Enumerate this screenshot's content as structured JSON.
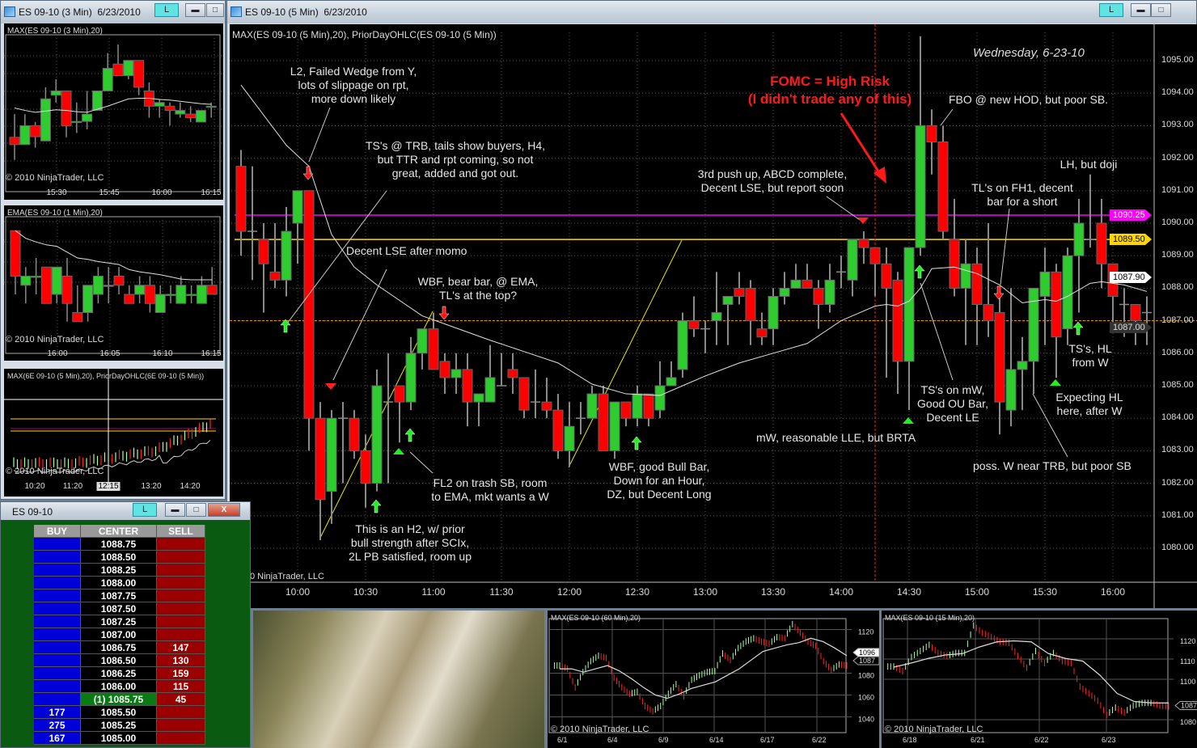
{
  "windows": {
    "three_min": {
      "title": "ES 09-10 (3 Min)  6/23/2010",
      "l_button": "L"
    },
    "main": {
      "title": "ES 09-10 (5 Min)  6/23/2010",
      "l_button": "L"
    },
    "dom": {
      "title": "ES 09-10",
      "l_button": "L",
      "minimize": "▬",
      "maximize": "□",
      "close": "X"
    }
  },
  "copyright": "© 2010 NinjaTrader, LLC",
  "copyright_partial": "0 NinjaTrader, LLC",
  "colors": {
    "up": "#2ecc2e",
    "down": "#ff0000",
    "ema": "#e0e0e0",
    "prior_high": "#ff00ff",
    "prior_open": "#ffd700",
    "last_price": "#ff9900",
    "fomc": "#ff1a1a"
  },
  "main_chart": {
    "indicator_label": "MAX(ES 09-10 (5 Min),20), PriorDayOHLC(ES 09-10 (5 Min))",
    "date_label": "Wednesday, 6-23-10",
    "price_axis": [
      "1095.00",
      "1094.00",
      "1093.00",
      "1092.00",
      "1091.00",
      "1090.00",
      "1089.00",
      "1088.00",
      "1087.00",
      "1086.00",
      "1085.00",
      "1084.00",
      "1083.00",
      "1082.00",
      "1081.00",
      "1080.00"
    ],
    "time_axis": [
      "10:00",
      "10:30",
      "11:00",
      "11:30",
      "12:00",
      "12:30",
      "13:00",
      "13:30",
      "14:00",
      "14:30",
      "15:00",
      "15:30",
      "16:00"
    ],
    "price_tags": {
      "prior_high": "1090.25",
      "prior_open": "1089.50",
      "ema": "1087.90",
      "last": "1087.00"
    },
    "levels": {
      "prior_high": 1090.25,
      "prior_open": 1089.5,
      "last": 1087.0
    },
    "first_bar_time": "9:35",
    "bar_minutes": 5,
    "candles_ohlc": [
      [
        1091.75,
        1092.25,
        1089.0,
        1089.75
      ],
      [
        1089.75,
        1091.75,
        1088.25,
        1089.75
      ],
      [
        1089.5,
        1090.0,
        1087.25,
        1088.75
      ],
      [
        1088.5,
        1090.0,
        1088.0,
        1088.25
      ],
      [
        1088.25,
        1090.5,
        1087.75,
        1089.75
      ],
      [
        1090.0,
        1091.0,
        1088.75,
        1091.0
      ],
      [
        1091.0,
        1091.0,
        1083.0,
        1084.0
      ],
      [
        1084.0,
        1084.5,
        1080.25,
        1081.5
      ],
      [
        1081.75,
        1084.25,
        1080.75,
        1084.0
      ],
      [
        1084.0,
        1084.5,
        1082.0,
        1084.0
      ],
      [
        1084.0,
        1084.25,
        1082.75,
        1083.0
      ],
      [
        1083.0,
        1083.5,
        1081.25,
        1082.0
      ],
      [
        1082.0,
        1085.5,
        1081.75,
        1085.0
      ],
      [
        1084.5,
        1086.0,
        1082.0,
        1084.5
      ],
      [
        1085.0,
        1085.0,
        1083.25,
        1084.5
      ],
      [
        1084.5,
        1086.5,
        1084.25,
        1086.0
      ],
      [
        1086.0,
        1086.75,
        1085.5,
        1086.75
      ],
      [
        1086.75,
        1087.25,
        1085.5,
        1085.5
      ],
      [
        1085.75,
        1086.0,
        1084.75,
        1085.25
      ],
      [
        1085.25,
        1086.0,
        1084.75,
        1085.5
      ],
      [
        1085.5,
        1086.0,
        1083.75,
        1084.5
      ],
      [
        1084.5,
        1084.75,
        1083.75,
        1084.75
      ],
      [
        1084.5,
        1086.25,
        1084.5,
        1085.25
      ],
      [
        1085.0,
        1086.0,
        1085.0,
        1085.0
      ],
      [
        1085.5,
        1086.0,
        1084.75,
        1085.25
      ],
      [
        1085.25,
        1085.25,
        1084.0,
        1084.25
      ],
      [
        1084.5,
        1085.5,
        1084.0,
        1084.5
      ],
      [
        1084.5,
        1085.25,
        1084.0,
        1084.25
      ],
      [
        1084.25,
        1084.75,
        1082.75,
        1083.0
      ],
      [
        1083.0,
        1084.5,
        1082.5,
        1083.75
      ],
      [
        1084.0,
        1084.5,
        1083.5,
        1084.0
      ],
      [
        1084.0,
        1085.0,
        1084.0,
        1084.75
      ],
      [
        1084.75,
        1085.0,
        1083.0,
        1083.0
      ],
      [
        1083.0,
        1084.5,
        1082.75,
        1084.5
      ],
      [
        1084.5,
        1084.5,
        1083.75,
        1084.0
      ],
      [
        1084.0,
        1085.0,
        1083.75,
        1084.75
      ],
      [
        1084.75,
        1084.75,
        1083.75,
        1084.0
      ],
      [
        1084.25,
        1085.75,
        1084.0,
        1085.0
      ],
      [
        1085.0,
        1085.75,
        1085.0,
        1085.25
      ],
      [
        1085.5,
        1087.25,
        1085.25,
        1087.0
      ],
      [
        1087.0,
        1087.75,
        1086.5,
        1086.75
      ],
      [
        1086.75,
        1087.0,
        1086.0,
        1086.75
      ],
      [
        1087.0,
        1088.5,
        1086.25,
        1087.25
      ],
      [
        1087.5,
        1087.75,
        1086.25,
        1087.75
      ],
      [
        1088.0,
        1088.5,
        1087.5,
        1087.75
      ],
      [
        1088.0,
        1088.25,
        1086.25,
        1087.0
      ],
      [
        1086.75,
        1087.25,
        1086.25,
        1086.5
      ],
      [
        1086.75,
        1088.0,
        1086.25,
        1087.75
      ],
      [
        1087.75,
        1088.5,
        1087.5,
        1088.0
      ],
      [
        1088.0,
        1088.75,
        1088.0,
        1088.25
      ],
      [
        1088.25,
        1088.75,
        1088.0,
        1088.0
      ],
      [
        1088.0,
        1088.25,
        1086.75,
        1087.5
      ],
      [
        1087.5,
        1088.75,
        1087.25,
        1088.25
      ],
      [
        1088.5,
        1089.0,
        1088.0,
        1088.5
      ],
      [
        1088.25,
        1089.5,
        1087.75,
        1089.5
      ],
      [
        1089.5,
        1089.75,
        1088.75,
        1089.25
      ],
      [
        1089.25,
        1089.25,
        1087.75,
        1088.75
      ],
      [
        1088.75,
        1089.25,
        1085.25,
        1088.0
      ],
      [
        1088.25,
        1088.5,
        1084.75,
        1085.75
      ],
      [
        1085.75,
        1089.25,
        1084.25,
        1089.25
      ],
      [
        1089.25,
        1095.75,
        1089.0,
        1093.0
      ],
      [
        1093.0,
        1093.5,
        1091.5,
        1092.5
      ],
      [
        1092.5,
        1093.0,
        1089.5,
        1089.75
      ],
      [
        1089.5,
        1090.75,
        1087.75,
        1088.0
      ],
      [
        1088.0,
        1089.5,
        1086.25,
        1088.75
      ],
      [
        1088.75,
        1089.25,
        1086.25,
        1087.5
      ],
      [
        1087.5,
        1090.0,
        1086.5,
        1087.0
      ],
      [
        1087.25,
        1088.0,
        1083.5,
        1084.5
      ],
      [
        1084.25,
        1088.0,
        1083.75,
        1085.5
      ],
      [
        1085.5,
        1086.5,
        1084.25,
        1085.75
      ],
      [
        1085.75,
        1088.0,
        1084.75,
        1088.0
      ],
      [
        1087.75,
        1089.25,
        1086.25,
        1088.5
      ],
      [
        1088.5,
        1088.75,
        1085.25,
        1086.5
      ],
      [
        1086.75,
        1089.25,
        1086.25,
        1089.0
      ],
      [
        1089.0,
        1090.75,
        1087.25,
        1090.0
      ],
      [
        1089.5,
        1091.5,
        1089.25,
        1089.5
      ],
      [
        1090.0,
        1090.75,
        1088.0,
        1088.75
      ],
      [
        1088.75,
        1088.75,
        1086.75,
        1087.75
      ],
      [
        1087.5,
        1088.0,
        1086.5,
        1087.5
      ],
      [
        1087.5,
        1087.5,
        1086.25,
        1087.0
      ],
      [
        1087.25,
        1087.75,
        1086.25,
        1087.25
      ]
    ],
    "ema": [
      [
        0,
        1094.25
      ],
      [
        4,
        1092.4
      ],
      [
        6,
        1091.75
      ],
      [
        8,
        1089.65
      ],
      [
        10,
        1088.65
      ],
      [
        12,
        1088.1
      ],
      [
        16,
        1087.15
      ],
      [
        18,
        1086.9
      ],
      [
        22,
        1086.4
      ],
      [
        25,
        1086.05
      ],
      [
        28,
        1085.7
      ],
      [
        31,
        1085.05
      ],
      [
        34,
        1084.75
      ],
      [
        37,
        1084.7
      ],
      [
        39,
        1085.0
      ],
      [
        41,
        1085.3
      ],
      [
        44,
        1085.7
      ],
      [
        47,
        1086.0
      ],
      [
        50,
        1086.3
      ],
      [
        53,
        1087.0
      ],
      [
        56,
        1087.45
      ],
      [
        57,
        1087.5
      ],
      [
        58,
        1087.45
      ],
      [
        59,
        1087.6
      ],
      [
        60,
        1088.0
      ],
      [
        61,
        1088.6
      ],
      [
        63,
        1088.65
      ],
      [
        65,
        1088.45
      ],
      [
        67,
        1088.1
      ],
      [
        69,
        1087.55
      ],
      [
        71,
        1087.65
      ],
      [
        72,
        1087.6
      ],
      [
        73,
        1087.75
      ],
      [
        75,
        1088.15
      ],
      [
        76,
        1088.2
      ],
      [
        78,
        1088.1
      ],
      [
        80,
        1087.9
      ]
    ],
    "annotations": {
      "l2_wedge": [
        "L2, Failed Wedge from Y,",
        "lots of slippage on rpt,",
        "more down likely"
      ],
      "ts_trb": [
        "TS's @ TRB, tails show buyers, H4,",
        "but TTR and rpt coming, so not",
        "great, added and got out."
      ],
      "decent_lse": [
        "Decent LSE after momo"
      ],
      "wbf_bear": [
        "WBF, bear bar, @ EMA,",
        "TL's at the top?"
      ],
      "fl2": [
        "FL2 on trash SB, room",
        "to EMA, mkt wants a W"
      ],
      "h2": [
        "This is an H2, w/ prior",
        "bull strength after SCIx,",
        "2L PB satisfied, room up"
      ],
      "wbf_bull": [
        "WBF, good Bull Bar,",
        "Down for an Hour,",
        "DZ, but Decent Long"
      ],
      "third_push": [
        "3rd push up, ABCD complete,",
        "Decent LSE, but report soon"
      ],
      "fomc": [
        "FOMC = High Risk",
        "(I didn't trade any of this)"
      ],
      "fbo": [
        "FBO @ new HOD, but poor SB."
      ],
      "lh_doji": [
        "LH, but doji"
      ],
      "tls_fh1": [
        "TL's on FH1, decent",
        "bar for a short"
      ],
      "ts_mw": [
        "TS's on mW,",
        "Good OU Bar,",
        "Decent LE"
      ],
      "mw_lle": [
        "mW, reasonable LLE, but BRTA"
      ],
      "ts_hl": [
        "TS's, HL",
        "from W"
      ],
      "expect_hl": [
        "Expecting HL",
        "here, after W"
      ],
      "poss_w": [
        "poss. W near TRB, but poor SB"
      ]
    }
  },
  "chart_3min": {
    "indicator_label": "MAX(ES 09-10 (3 Min),20)",
    "time_axis": [
      "15:30",
      "15:45",
      "16:00",
      "16:15"
    ],
    "candles_ohlc": [
      [
        1086.62,
        1087,
        1086.25,
        1086.5
      ],
      [
        1086.5,
        1087,
        1086.5,
        1086.81
      ],
      [
        1086.81,
        1086.87,
        1086.45,
        1086.63
      ],
      [
        1086.56,
        1087.44,
        1086.56,
        1087.25
      ],
      [
        1087.31,
        1087.57,
        1087.19,
        1087.38
      ],
      [
        1087.38,
        1087.38,
        1086.62,
        1086.81
      ],
      [
        1086.88,
        1087.19,
        1086.69,
        1086.88
      ],
      [
        1086.88,
        1087.38,
        1086.75,
        1087.0
      ],
      [
        1087.06,
        1087.38,
        1087.06,
        1087.38
      ],
      [
        1087.38,
        1088.0,
        1087.38,
        1087.75
      ],
      [
        1087.82,
        1088.14,
        1087.63,
        1087.63
      ],
      [
        1087.63,
        1087.88,
        1087.57,
        1087.88
      ],
      [
        1087.88,
        1087.88,
        1087.31,
        1087.44
      ],
      [
        1087.38,
        1087.52,
        1086.94,
        1087.13
      ],
      [
        1087.13,
        1087.25,
        1086.94,
        1087.19
      ],
      [
        1087.13,
        1087.19,
        1086.81,
        1087.06
      ],
      [
        1087.0,
        1087.19,
        1086.94,
        1087.06
      ],
      [
        1087.0,
        1087.13,
        1086.87,
        1086.94
      ],
      [
        1086.87,
        1087.06,
        1086.87,
        1087.06
      ],
      [
        1087.13,
        1087.19,
        1086.94,
        1087.13
      ]
    ],
    "ma": [
      1087.1,
      1087.06,
      1087.03,
      1087.05,
      1087.07,
      1087.06,
      1087.04,
      1087.03,
      1087.08,
      1087.13,
      1087.19,
      1087.25,
      1087.26,
      1087.26,
      1087.24,
      1087.23,
      1087.21,
      1087.19,
      1087.17,
      1087.16
    ]
  },
  "chart_1min": {
    "indicator_label": "EMA(ES 09-10 (1 Min),20)",
    "time_axis": [
      "16:00",
      "16:05",
      "16:10",
      "16:15"
    ],
    "candles_ohlc": [
      [
        1087.875,
        1087.875,
        1087.0,
        1087.25
      ],
      [
        1087.125,
        1087.375,
        1086.875,
        1087.25
      ],
      [
        1087.25,
        1087.5,
        1087.0,
        1087.25
      ],
      [
        1087.375,
        1087.375,
        1086.875,
        1086.875
      ],
      [
        1087.0,
        1087.375,
        1086.875,
        1087.375
      ],
      [
        1087.25,
        1087.5,
        1086.625,
        1086.875
      ],
      [
        1086.75,
        1087.125,
        1086.625,
        1086.625
      ],
      [
        1086.75,
        1087.125,
        1086.625,
        1087.125
      ],
      [
        1087.0,
        1087.375,
        1086.875,
        1087.25
      ],
      [
        1087.125,
        1087.375,
        1086.875,
        1087.125
      ],
      [
        1087.25,
        1087.375,
        1087.0,
        1087.125
      ],
      [
        1087.0,
        1087.125,
        1086.875,
        1086.875
      ],
      [
        1087.0,
        1087.25,
        1086.875,
        1087.125
      ],
      [
        1087.125,
        1087.25,
        1086.75,
        1086.875
      ],
      [
        1086.75,
        1087.125,
        1086.75,
        1087.0
      ],
      [
        1087.0,
        1087.125,
        1086.875,
        1087.0
      ],
      [
        1086.875,
        1087.25,
        1086.875,
        1087.125
      ],
      [
        1087.0,
        1087.125,
        1086.875,
        1087.0
      ],
      [
        1086.875,
        1087.25,
        1086.875,
        1087.125
      ],
      [
        1087.125,
        1087.375,
        1087.0,
        1087.0
      ]
    ],
    "ma": [
      1087.875,
      1087.77,
      1087.72,
      1087.68,
      1087.66,
      1087.58,
      1087.5,
      1087.48,
      1087.45,
      1087.43,
      1087.41,
      1087.34,
      1087.31,
      1087.29,
      1087.27,
      1087.24,
      1087.21,
      1087.2,
      1087.2,
      1087.2
    ]
  },
  "chart_6e": {
    "indicator_label": "MAX(6E 09-10 (5 Min),20), PriorDayOHLC(6E 09-10 (5 Min))",
    "time_axis": [
      "10:20",
      "11:20",
      "12:15",
      "13:20",
      "14:20"
    ],
    "crosshair_time": "12:15"
  },
  "chart_60min": {
    "indicator_label": "MAX(ES 09-10 (60 Min),20)",
    "price_axis": [
      "1120",
      "1080",
      "1060",
      "1040"
    ],
    "date_axis": [
      "6/1",
      "6/4",
      "6/9",
      "6/14",
      "6/17",
      "6/22"
    ],
    "price_tags": {
      "ma": "1096",
      "last": "1087"
    },
    "closes": [
      1087,
      1084,
      1067,
      1081,
      1091,
      1096,
      1094,
      1076,
      1067,
      1061,
      1063,
      1050,
      1045,
      1050,
      1061,
      1070,
      1059,
      1074,
      1078,
      1081,
      1082,
      1098,
      1092,
      1103,
      1109,
      1112,
      1109,
      1107,
      1113,
      1112,
      1125,
      1117,
      1109,
      1105,
      1091,
      1083,
      1088,
      1087
    ],
    "ma": [
      1084,
      1084,
      1081,
      1084,
      1087,
      1082,
      1075,
      1067,
      1060,
      1057,
      1061,
      1066,
      1069,
      1072,
      1078,
      1084,
      1092,
      1100,
      1103,
      1106,
      1108,
      1112,
      1109,
      1103,
      1096
    ]
  },
  "chart_15min": {
    "indicator_label": "MAX(ES 09-10 (15 Min),20)",
    "price_axis": [
      "1120",
      "1110",
      "1100",
      "1080"
    ],
    "date_axis": [
      "6/18",
      "6/21",
      "6/22",
      "6/23"
    ],
    "price_tags": {
      "last": "1087"
    },
    "closes": [
      1106.3,
      1104,
      1111,
      1114,
      1117,
      1113,
      1111.5,
      1113,
      1113,
      1126.6,
      1123,
      1121,
      1118.5,
      1118,
      1111.5,
      1105.7,
      1114,
      1108,
      1113,
      1109,
      1108,
      1096.4,
      1093,
      1089.4,
      1082.4,
      1086,
      1083.6,
      1087,
      1088.3,
      1088.3,
      1087,
      1086.5
    ],
    "ma": [
      1106,
      1108,
      1110.3,
      1112,
      1112.7,
      1116,
      1118.5,
      1119,
      1118.5,
      1112.7,
      1110.3,
      1109,
      1102,
      1093,
      1089,
      1088.3,
      1088.3
    ]
  },
  "dom": {
    "headers": {
      "buy": "BUY",
      "center": "CENTER",
      "sell": "SELL"
    },
    "rows": [
      {
        "buy": "",
        "price": "1088.75",
        "sell": ""
      },
      {
        "buy": "",
        "price": "1088.50",
        "sell": ""
      },
      {
        "buy": "",
        "price": "1088.25",
        "sell": ""
      },
      {
        "buy": "",
        "price": "1088.00",
        "sell": ""
      },
      {
        "buy": "",
        "price": "1087.75",
        "sell": ""
      },
      {
        "buy": "",
        "price": "1087.50",
        "sell": ""
      },
      {
        "buy": "",
        "price": "1087.25",
        "sell": ""
      },
      {
        "buy": "",
        "price": "1087.00",
        "sell": ""
      },
      {
        "buy": "",
        "price": "1086.75",
        "sell": "147"
      },
      {
        "buy": "",
        "price": "1086.50",
        "sell": "130"
      },
      {
        "buy": "",
        "price": "1086.25",
        "sell": "159"
      },
      {
        "buy": "",
        "price": "1086.00",
        "sell": "115"
      },
      {
        "buy": "",
        "price": "(1) 1085.75",
        "sell": "45",
        "last": true
      },
      {
        "buy": "177",
        "price": "1085.50",
        "sell": ""
      },
      {
        "buy": "275",
        "price": "1085.25",
        "sell": ""
      },
      {
        "buy": "167",
        "price": "1085.00",
        "sell": ""
      }
    ]
  }
}
